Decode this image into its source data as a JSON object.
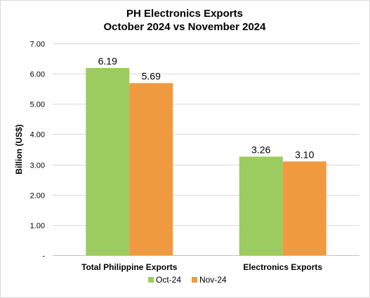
{
  "chart_data": {
    "type": "bar",
    "title": "PH Electronics Exports",
    "subtitle": "October 2024 vs November 2024",
    "ylabel": "Billion (US$)",
    "xlabel": "",
    "categories": [
      "Total Philippine Exports",
      "Electronics Exports"
    ],
    "series": [
      {
        "name": "Oct-24",
        "color": "#9ccb5f",
        "values": [
          6.19,
          3.26
        ],
        "labels": [
          "6.19",
          "3.26"
        ]
      },
      {
        "name": "Nov-24",
        "color": "#f09a40",
        "values": [
          5.69,
          3.1
        ],
        "labels": [
          "5.69",
          "3.10"
        ]
      }
    ],
    "ylim": [
      0,
      7
    ],
    "yticks": [
      0,
      1,
      2,
      3,
      4,
      5,
      6,
      7
    ],
    "ytick_labels": [
      "-",
      "1.00",
      "2.00",
      "3.00",
      "4.00",
      "5.00",
      "6.00",
      "7.00"
    ],
    "grid": true,
    "legend_position": "bottom"
  }
}
